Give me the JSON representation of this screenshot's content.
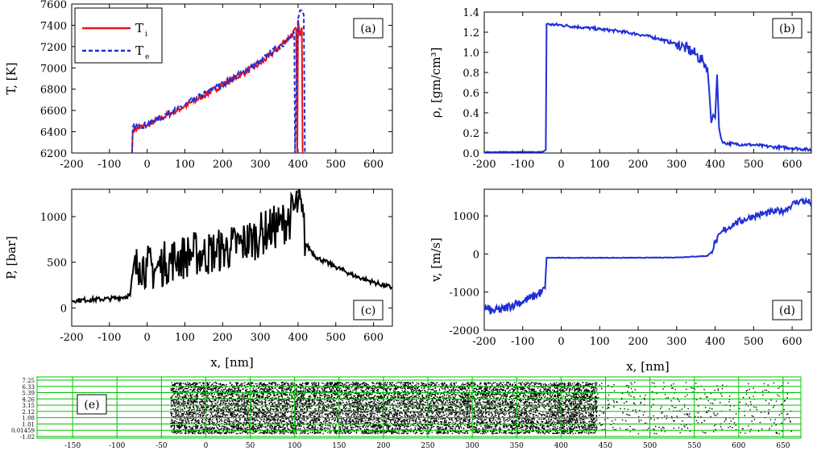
{
  "chart_data": [
    {
      "type": "line",
      "panel": "(a)",
      "xlabel": "",
      "ylabel": "T, [K]",
      "xlim": [
        -200,
        650
      ],
      "ylim": [
        6200,
        7600
      ],
      "xticks": [
        -200,
        -100,
        0,
        100,
        200,
        300,
        400,
        500,
        600
      ],
      "yticks": [
        6200,
        6400,
        6600,
        6800,
        7000,
        7200,
        7400,
        7600
      ],
      "legend": {
        "placement": "top-left",
        "entries": [
          {
            "label": "T",
            "sub": "i"
          },
          {
            "label": "T",
            "sub": "e"
          }
        ]
      },
      "series": [
        {
          "name": "Ti",
          "color": "#e8141b",
          "style": "solid",
          "x": [
            -40,
            -38,
            -30,
            -20,
            -10,
            0,
            20,
            50,
            100,
            150,
            200,
            250,
            300,
            350,
            380,
            395,
            398,
            400,
            405,
            410,
            412
          ],
          "y": [
            6200,
            6420,
            6430,
            6440,
            6450,
            6460,
            6500,
            6550,
            6640,
            6740,
            6840,
            6940,
            7040,
            7200,
            7300,
            7360,
            6200,
            7450,
            7300,
            7380,
            6200
          ]
        },
        {
          "name": "Te",
          "color": "#1f2fd6",
          "style": "dashed",
          "x": [
            -40,
            -38,
            -30,
            0,
            50,
            100,
            150,
            200,
            250,
            300,
            350,
            380,
            390,
            392,
            400,
            405,
            410,
            415,
            418
          ],
          "y": [
            6200,
            6450,
            6450,
            6470,
            6560,
            6650,
            6750,
            6850,
            6950,
            7060,
            7200,
            7280,
            7320,
            6200,
            7460,
            7540,
            7540,
            7500,
            6200
          ]
        }
      ]
    },
    {
      "type": "line",
      "panel": "(b)",
      "xlabel": "",
      "ylabel": "ρ, [gm/cm³]",
      "xlim": [
        -200,
        650
      ],
      "ylim": [
        0.0,
        1.4
      ],
      "xticks": [
        -200,
        -100,
        0,
        100,
        200,
        300,
        400,
        500,
        600
      ],
      "yticks": [
        0.0,
        0.2,
        0.4,
        0.6,
        0.8,
        1.0,
        1.2,
        1.4
      ],
      "series": [
        {
          "name": "",
          "color": "#1f2fd6",
          "style": "solid",
          "x": [
            -200,
            -100,
            -50,
            -40,
            -38,
            0,
            50,
            100,
            150,
            200,
            250,
            300,
            320,
            350,
            370,
            380,
            385,
            390,
            395,
            400,
            405,
            410,
            415,
            420,
            450,
            500,
            550,
            600,
            650
          ],
          "y": [
            0.01,
            0.01,
            0.01,
            0.03,
            1.28,
            1.27,
            1.25,
            1.23,
            1.21,
            1.18,
            1.14,
            1.08,
            1.05,
            0.98,
            0.9,
            0.85,
            0.6,
            0.3,
            0.38,
            0.35,
            0.78,
            0.25,
            0.15,
            0.1,
            0.09,
            0.08,
            0.06,
            0.05,
            0.03
          ]
        }
      ]
    },
    {
      "type": "line",
      "panel": "(c)",
      "xlabel": "x, [nm]",
      "ylabel": "P, [bar]",
      "xlim": [
        -200,
        650
      ],
      "ylim": [
        -200,
        1300
      ],
      "xticks": [
        -200,
        -100,
        0,
        100,
        200,
        300,
        400,
        500,
        600
      ],
      "yticks": [
        0,
        500,
        1000
      ],
      "series": [
        {
          "name": "",
          "color": "#000000",
          "style": "solid",
          "x": [
            -200,
            -150,
            -100,
            -80,
            -60,
            -45,
            -40,
            -20,
            0,
            20,
            50,
            80,
            100,
            120,
            150,
            180,
            200,
            220,
            250,
            280,
            300,
            320,
            350,
            380,
            400,
            410,
            420,
            450,
            500,
            550,
            600,
            650
          ],
          "y": [
            80,
            90,
            100,
            110,
            120,
            140,
            350,
            500,
            450,
            420,
            500,
            550,
            560,
            600,
            580,
            620,
            640,
            660,
            700,
            760,
            800,
            850,
            900,
            1000,
            1150,
            1050,
            700,
            550,
            450,
            350,
            280,
            220
          ]
        }
      ]
    },
    {
      "type": "line",
      "panel": "(d)",
      "xlabel": "x, [nm]",
      "ylabel": "v, [m/s]",
      "xlim": [
        -200,
        650
      ],
      "ylim": [
        -2000,
        1700
      ],
      "xticks": [
        -200,
        -100,
        0,
        100,
        200,
        300,
        400,
        500,
        600
      ],
      "yticks": [
        -2000,
        -1000,
        0,
        1000
      ],
      "series": [
        {
          "name": "",
          "color": "#1f2fd6",
          "style": "solid",
          "x": [
            -200,
            -180,
            -150,
            -120,
            -100,
            -80,
            -50,
            -42,
            -38,
            0,
            100,
            200,
            300,
            380,
            390,
            400,
            420,
            450,
            500,
            550,
            580,
            600,
            620,
            650
          ],
          "y": [
            -1400,
            -1500,
            -1450,
            -1300,
            -1250,
            -1150,
            -1000,
            -900,
            -100,
            -100,
            -100,
            -100,
            -90,
            -50,
            50,
            300,
            600,
            800,
            1000,
            1100,
            1150,
            1300,
            1400,
            1350
          ]
        }
      ]
    },
    {
      "type": "scatter",
      "panel": "(e)",
      "xlim": [
        -190,
        670
      ],
      "xticks": [
        -150,
        -100,
        -50,
        0,
        50,
        100,
        150,
        200,
        250,
        300,
        350,
        400,
        450,
        500,
        550,
        600,
        650
      ],
      "yticks": [
        "7.25",
        "6.33",
        "5.39",
        "4.26",
        "3.15",
        "2.12",
        "1.08",
        "1.01",
        "0.01459",
        "-1.02"
      ],
      "regions": [
        {
          "from": -40,
          "to": 390,
          "density": "dense"
        },
        {
          "from": 390,
          "to": 440,
          "density": "transition"
        },
        {
          "from": 440,
          "to": 660,
          "density": "sparse"
        }
      ],
      "point_color": "#000000",
      "grid_color": "#00c400"
    }
  ]
}
